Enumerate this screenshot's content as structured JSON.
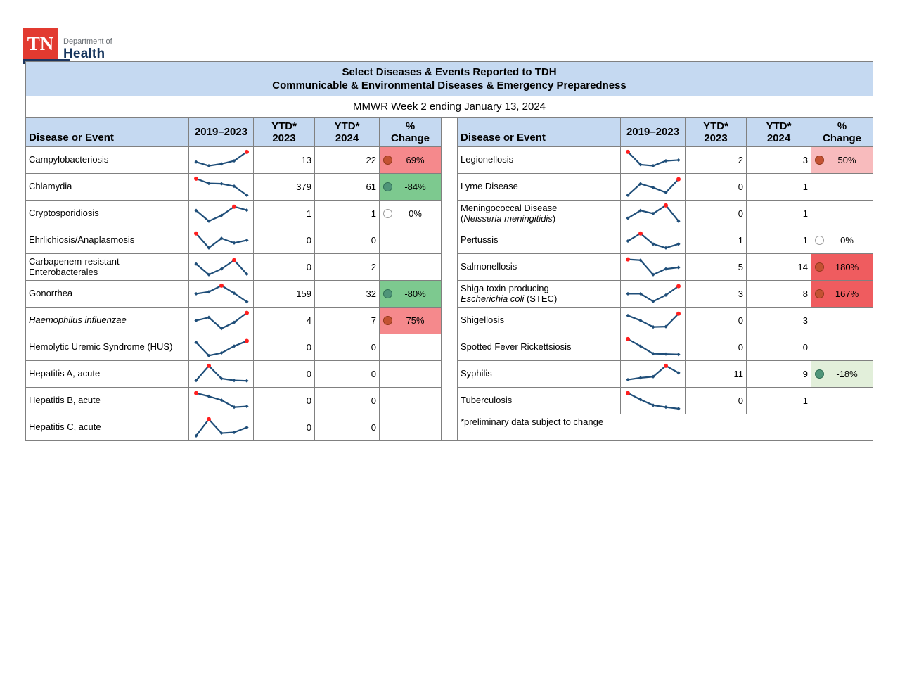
{
  "logo": {
    "tn": "TN",
    "dept": "Department of",
    "health": "Health"
  },
  "title": {
    "line1": "Select Diseases & Events Reported to TDH",
    "line2": "Communicable & Environmental Diseases & Emergency Preparedness"
  },
  "subtitle": "MMWR Week 2 ending January 13, 2024",
  "columns": {
    "disease": "Disease or Event",
    "trend": "2019–2023",
    "ytd": "YTD*",
    "y2023": "2023",
    "y2024": "2024",
    "pct": "%",
    "change": "Change"
  },
  "colors": {
    "header_bg": "#C5D9F1",
    "border": "#808080",
    "spark_line": "#1F4E79",
    "spark_max": "#FF1F1F",
    "red_medium_bg": "#F5898C",
    "red_strong_bg": "#EF5C5F",
    "red_light_bg": "#F8BBBD",
    "green_medium_bg": "#7DC98F",
    "green_light_bg": "#E2EFDA",
    "dot_red": "#C35232",
    "dot_red_border": "#93391C",
    "dot_green": "#4F9579",
    "dot_green_border": "#2F6F55",
    "dot_zero": "#FFFFFF",
    "dot_zero_border": "#9C9C9C"
  },
  "tables": {
    "left": {
      "rows": [
        {
          "name": [
            [
              {
                "t": "Campylobacteriosis"
              }
            ]
          ],
          "spark": [
            42,
            22,
            32,
            48,
            95
          ],
          "max": 4,
          "y23": "13",
          "y24": "22",
          "pct": "69%",
          "bg": "#F5898C",
          "dot": "#C35232",
          "dotb": "#93391C"
        },
        {
          "name": [
            [
              {
                "t": "Chlamydia"
              }
            ]
          ],
          "spark": [
            95,
            70,
            68,
            55,
            8
          ],
          "max": 0,
          "y23": "379",
          "y24": "61",
          "pct": "-84%",
          "bg": "#7DC98F",
          "dot": "#4F9579",
          "dotb": "#2F6F55"
        },
        {
          "name": [
            [
              {
                "t": "Cryptosporidiosis"
              }
            ]
          ],
          "spark": [
            68,
            12,
            42,
            88,
            70
          ],
          "max": 3,
          "y23": "1",
          "y24": "1",
          "pct": "0%",
          "bg": "#FFFFFF",
          "dot": "#FFFFFF",
          "dotb": "#9C9C9C"
        },
        {
          "name": [
            [
              {
                "t": "Ehrlichiosis/Anaplasmosis"
              }
            ]
          ],
          "spark": [
            88,
            12,
            62,
            38,
            52
          ],
          "max": 0,
          "y23": "0",
          "y24": "0",
          "pct": "",
          "bg": "",
          "dot": "",
          "dotb": ""
        },
        {
          "name": [
            [
              {
                "t": "Carbapenem-resistant"
              }
            ],
            [
              {
                "t": "Enterobacterales"
              }
            ]
          ],
          "spark": [
            68,
            12,
            42,
            88,
            15
          ],
          "max": 3,
          "y23": "0",
          "y24": "2",
          "pct": "",
          "bg": "",
          "dot": "",
          "dotb": ""
        },
        {
          "name": [
            [
              {
                "t": "Gonorrhea"
              }
            ]
          ],
          "spark": [
            52,
            62,
            95,
            55,
            10
          ],
          "max": 2,
          "y23": "159",
          "y24": "32",
          "pct": "-80%",
          "bg": "#7DC98F",
          "dot": "#4F9579",
          "dotb": "#2F6F55"
        },
        {
          "name": [
            [
              {
                "t": "Haemophilus influenzae",
                "i": true
              }
            ]
          ],
          "spark": [
            52,
            68,
            10,
            42,
            92
          ],
          "max": 4,
          "y23": "4",
          "y24": "7",
          "pct": "75%",
          "bg": "#F5898C",
          "dot": "#C35232",
          "dotb": "#93391C"
        },
        {
          "name": [
            [
              {
                "t": "Hemolytic Uremic Syndrome (HUS)"
              }
            ]
          ],
          "spark": [
            78,
            8,
            22,
            58,
            85
          ],
          "max": 4,
          "y23": "0",
          "y24": "0",
          "pct": "",
          "bg": "",
          "dot": "",
          "dotb": ""
        },
        {
          "name": [
            [
              {
                "t": "Hepatitis A, acute"
              }
            ]
          ],
          "spark": [
            18,
            95,
            28,
            18,
            16
          ],
          "max": 1,
          "y23": "0",
          "y24": "0",
          "pct": "",
          "bg": "",
          "dot": "",
          "dotb": ""
        },
        {
          "name": [
            [
              {
                "t": "Hepatitis B, acute"
              }
            ]
          ],
          "spark": [
            92,
            75,
            55,
            18,
            22
          ],
          "max": 0,
          "y23": "0",
          "y24": "0",
          "pct": "",
          "bg": "",
          "dot": "",
          "dotb": ""
        },
        {
          "name": [
            [
              {
                "t": "Hepatitis C, acute"
              }
            ]
          ],
          "spark": [
            8,
            95,
            22,
            26,
            52
          ],
          "max": 1,
          "y23": "0",
          "y24": "0",
          "pct": "",
          "bg": "",
          "dot": "",
          "dotb": ""
        }
      ]
    },
    "right": {
      "rows": [
        {
          "name": [
            [
              {
                "t": "Legionellosis"
              }
            ]
          ],
          "spark": [
            95,
            28,
            22,
            48,
            52
          ],
          "max": 0,
          "y23": "2",
          "y24": "3",
          "pct": "50%",
          "bg": "#F8BBBD",
          "dot": "#C35232",
          "dotb": "#93391C"
        },
        {
          "name": [
            [
              {
                "t": "Lyme Disease"
              }
            ]
          ],
          "spark": [
            8,
            68,
            48,
            22,
            92
          ],
          "max": 4,
          "y23": "0",
          "y24": "1",
          "pct": "",
          "bg": "",
          "dot": "",
          "dotb": ""
        },
        {
          "name": [
            [
              {
                "t": "Meningococcal Disease"
              }
            ],
            [
              {
                "t": "("
              },
              {
                "t": "Neisseria meningitidis",
                "i": true
              },
              {
                "t": ")"
              }
            ]
          ],
          "spark": [
            28,
            68,
            52,
            95,
            12
          ],
          "max": 3,
          "y23": "0",
          "y24": "1",
          "pct": "",
          "bg": "",
          "dot": "",
          "dotb": ""
        },
        {
          "name": [
            [
              {
                "t": "Pertussis"
              }
            ]
          ],
          "spark": [
            48,
            88,
            32,
            12,
            32
          ],
          "max": 1,
          "y23": "1",
          "y24": "1",
          "pct": "0%",
          "bg": "#FFFFFF",
          "dot": "#FFFFFF",
          "dotb": "#9C9C9C"
        },
        {
          "name": [
            [
              {
                "t": "Salmonellosis"
              }
            ]
          ],
          "spark": [
            92,
            88,
            12,
            42,
            50
          ],
          "max": 0,
          "y23": "5",
          "y24": "14",
          "pct": "180%",
          "bg": "#EF5C5F",
          "dot": "#C35232",
          "dotb": "#93391C"
        },
        {
          "name": [
            [
              {
                "t": "Shiga toxin-producing"
              }
            ],
            [
              {
                "t": "Escherichia coli",
                "i": true
              },
              {
                "t": " (STEC)"
              }
            ]
          ],
          "spark": [
            52,
            52,
            12,
            45,
            92
          ],
          "max": 4,
          "y23": "3",
          "y24": "8",
          "pct": "167%",
          "bg": "#EF5C5F",
          "dot": "#C35232",
          "dotb": "#93391C"
        },
        {
          "name": [
            [
              {
                "t": "Shigellosis"
              }
            ]
          ],
          "spark": [
            78,
            52,
            18,
            20,
            88
          ],
          "max": 4,
          "y23": "0",
          "y24": "3",
          "pct": "",
          "bg": "",
          "dot": "",
          "dotb": ""
        },
        {
          "name": [
            [
              {
                "t": "Spotted Fever Rickettsiosis"
              }
            ]
          ],
          "spark": [
            95,
            58,
            18,
            16,
            14
          ],
          "max": 0,
          "y23": "0",
          "y24": "0",
          "pct": "",
          "bg": "",
          "dot": "",
          "dotb": ""
        },
        {
          "name": [
            [
              {
                "t": "Syphilis"
              }
            ]
          ],
          "spark": [
            22,
            32,
            38,
            95,
            58
          ],
          "max": 3,
          "y23": "11",
          "y24": "9",
          "pct": "-18%",
          "bg": "#E2EFDA",
          "dot": "#4F9579",
          "dotb": "#2F6F55"
        },
        {
          "name": [
            [
              {
                "t": "Tuberculosis"
              }
            ]
          ],
          "spark": [
            92,
            58,
            28,
            18,
            10
          ],
          "max": 0,
          "y23": "0",
          "y24": "1",
          "pct": "",
          "bg": "",
          "dot": "",
          "dotb": ""
        }
      ],
      "footnote": "*preliminary data subject to change"
    }
  }
}
